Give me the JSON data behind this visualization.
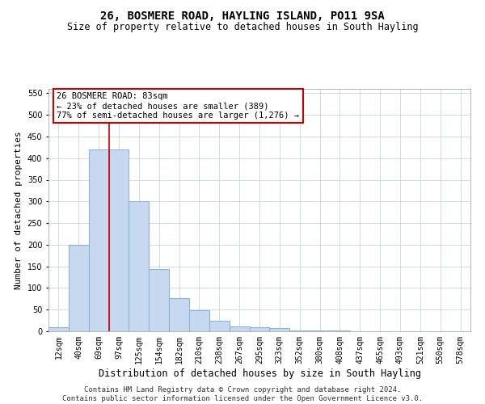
{
  "title": "26, BOSMERE ROAD, HAYLING ISLAND, PO11 9SA",
  "subtitle": "Size of property relative to detached houses in South Hayling",
  "xlabel": "Distribution of detached houses by size in South Hayling",
  "ylabel": "Number of detached properties",
  "footer_line1": "Contains HM Land Registry data © Crown copyright and database right 2024.",
  "footer_line2": "Contains public sector information licensed under the Open Government Licence v3.0.",
  "categories": [
    "12sqm",
    "40sqm",
    "69sqm",
    "97sqm",
    "125sqm",
    "154sqm",
    "182sqm",
    "210sqm",
    "238sqm",
    "267sqm",
    "295sqm",
    "323sqm",
    "352sqm",
    "380sqm",
    "408sqm",
    "437sqm",
    "465sqm",
    "493sqm",
    "521sqm",
    "550sqm",
    "578sqm"
  ],
  "bar_values": [
    10,
    200,
    420,
    420,
    300,
    143,
    77,
    49,
    25,
    12,
    9,
    8,
    1,
    1,
    1,
    0,
    0,
    0,
    0,
    0,
    0
  ],
  "bar_color": "#c6d9f0",
  "bar_edge_color": "#8cb4d5",
  "bar_edge_width": 0.8,
  "ylim": [
    0,
    560
  ],
  "yticks": [
    0,
    50,
    100,
    150,
    200,
    250,
    300,
    350,
    400,
    450,
    500,
    550
  ],
  "annotation_title": "26 BOSMERE ROAD: 83sqm",
  "annotation_line2": "← 23% of detached houses are smaller (389)",
  "annotation_line3": "77% of semi-detached houses are larger (1,276) →",
  "vline_x": 2.5,
  "vline_color": "#cc0000",
  "grid_color": "#c8d4e8",
  "title_fontsize": 10,
  "subtitle_fontsize": 8.5,
  "xlabel_fontsize": 8.5,
  "ylabel_fontsize": 8,
  "tick_fontsize": 7,
  "annotation_fontsize": 7.5,
  "footer_fontsize": 6.5
}
